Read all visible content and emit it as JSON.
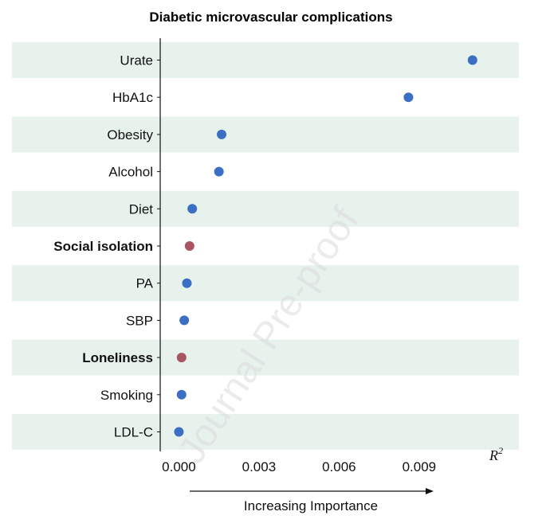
{
  "chart_data": {
    "type": "scatter",
    "title": "Diabetic microvascular complications",
    "categories": [
      "Urate",
      "HbA1c",
      "Obesity",
      "Alcohol",
      "Diet",
      "Social isolation",
      "PA",
      "SBP",
      "Loneliness",
      "Smoking",
      "LDL-C"
    ],
    "bold_categories": [
      "Social isolation",
      "Loneliness"
    ],
    "values": [
      0.011,
      0.0086,
      0.0016,
      0.0015,
      0.0005,
      0.0004,
      0.0003,
      0.0002,
      0.0001,
      0.0001,
      0.0
    ],
    "point_colors": [
      "#3a6fc4",
      "#3a6fc4",
      "#3a6fc4",
      "#3a6fc4",
      "#3a6fc4",
      "#a85462",
      "#3a6fc4",
      "#3a6fc4",
      "#a85462",
      "#3a6fc4",
      "#3a6fc4"
    ],
    "xlim": [
      -0.0007,
      0.0122
    ],
    "xticks": [
      "0.000",
      "0.003",
      "0.006",
      "0.009"
    ],
    "xtick_values": [
      0,
      0.003,
      0.006,
      0.009
    ],
    "xlabel": "Increasing Importance",
    "axis_symbol": "R",
    "axis_symbol_sup": "2",
    "band_color": "#e7f2ec",
    "watermark": "Journal Pre-proof"
  }
}
